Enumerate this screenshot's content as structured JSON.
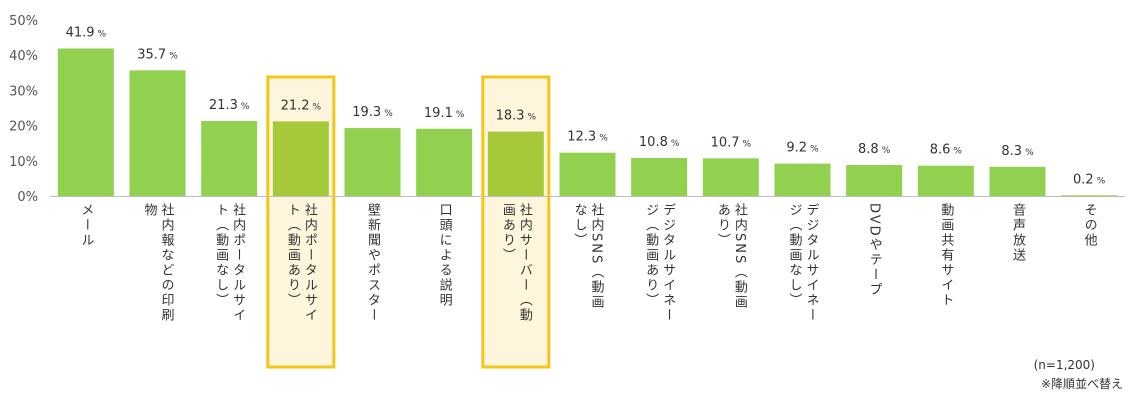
{
  "chart_data": {
    "type": "bar",
    "title": "",
    "xlabel": "",
    "ylabel": "",
    "ylim": [
      0,
      50
    ],
    "yticks": [
      "0%",
      "10%",
      "20%",
      "30%",
      "40%",
      "50%"
    ],
    "grid": false,
    "categories": [
      [
        "メール"
      ],
      [
        "社内報などの印刷",
        "物"
      ],
      [
        "社内ポータルサイ",
        "ト（動画なし）"
      ],
      [
        "社内ポータルサイ",
        "ト（動画あり）"
      ],
      [
        "壁新聞やポスター"
      ],
      [
        "口頭による説明"
      ],
      [
        "社内サーバー（動",
        "画あり）"
      ],
      [
        "社内SNS（動画",
        "なし）"
      ],
      [
        "デジタルサイネー",
        "ジ（動画あり）"
      ],
      [
        "社内SNS（動画",
        "あり）"
      ],
      [
        "デジタルサイネー",
        "ジ（動画なし）"
      ],
      [
        "DVDやテープ"
      ],
      [
        "動画共有サイト"
      ],
      [
        "音声放送"
      ],
      [
        "その他"
      ]
    ],
    "values": [
      41.9,
      35.7,
      21.3,
      21.2,
      19.3,
      19.1,
      18.3,
      12.3,
      10.8,
      10.7,
      9.2,
      8.8,
      8.6,
      8.3,
      0.2
    ],
    "value_labels": [
      "41.9",
      "35.7",
      "21.3",
      "21.2",
      "19.3",
      "19.1",
      "18.3",
      "12.3",
      "10.8",
      "10.7",
      "9.2",
      "8.8",
      "8.6",
      "8.3",
      "0.2"
    ],
    "value_suffix": "%",
    "highlighted": [
      3,
      6
    ],
    "colors": {
      "bar": "#92d050",
      "bar_highlight": "#a5c93a",
      "highlight_box": "#f5c518",
      "highlight_fill": "#fdf6dc"
    }
  },
  "notes": {
    "sample": "(n=1,200)",
    "sort": "※降順並べ替え"
  }
}
